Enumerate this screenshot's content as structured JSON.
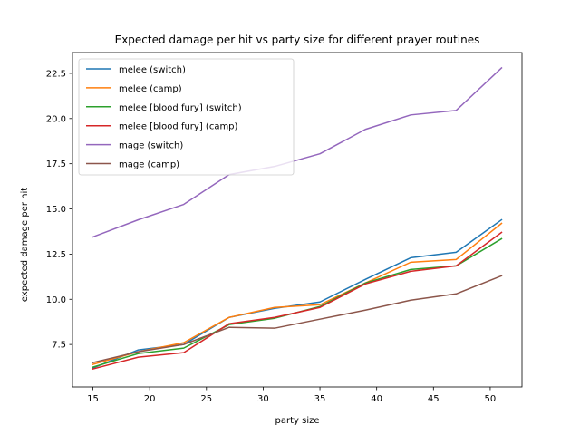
{
  "chart_data": {
    "type": "line",
    "title": "Expected damage per hit vs party size for different prayer routines",
    "xlabel": "party size",
    "ylabel": "expected damage per hit",
    "xlim": [
      13.2,
      52.8
    ],
    "ylim": [
      5.15,
      23.65
    ],
    "xticks": [
      15,
      20,
      25,
      30,
      35,
      40,
      45,
      50
    ],
    "yticks": [
      7.5,
      10.0,
      12.5,
      15.0,
      17.5,
      20.0,
      22.5
    ],
    "ytick_labels": [
      "7.5",
      "10.0",
      "12.5",
      "15.0",
      "17.5",
      "20.0",
      "22.5"
    ],
    "grid": false,
    "legend_position": "upper-left",
    "x": [
      15,
      19,
      23,
      27,
      31,
      35,
      39,
      43,
      47,
      51
    ],
    "series": [
      {
        "name": "melee (switch)",
        "color": "#1f77b4",
        "values": [
          6.2,
          7.2,
          7.5,
          9.0,
          9.5,
          9.85,
          11.1,
          12.3,
          12.6,
          14.4
        ]
      },
      {
        "name": "melee (camp)",
        "color": "#ff7f0e",
        "values": [
          6.4,
          7.1,
          7.6,
          9.0,
          9.55,
          9.7,
          10.9,
          12.05,
          12.2,
          14.2
        ]
      },
      {
        "name": "melee [blood fury] (switch)",
        "color": "#2ca02c",
        "values": [
          6.25,
          7.0,
          7.3,
          8.6,
          8.95,
          9.6,
          10.9,
          11.65,
          11.85,
          13.35
        ]
      },
      {
        "name": "melee [blood fury] (camp)",
        "color": "#d62728",
        "values": [
          6.15,
          6.8,
          7.05,
          8.65,
          9.0,
          9.55,
          10.85,
          11.55,
          11.85,
          13.7
        ]
      },
      {
        "name": "mage (switch)",
        "color": "#9467bd",
        "values": [
          13.45,
          14.4,
          15.25,
          16.9,
          17.35,
          18.05,
          19.4,
          20.2,
          20.45,
          22.8
        ]
      },
      {
        "name": "mage (camp)",
        "color": "#8c564b",
        "values": [
          6.5,
          7.1,
          7.5,
          8.45,
          8.4,
          8.9,
          9.4,
          9.95,
          10.3,
          11.3
        ]
      }
    ]
  }
}
